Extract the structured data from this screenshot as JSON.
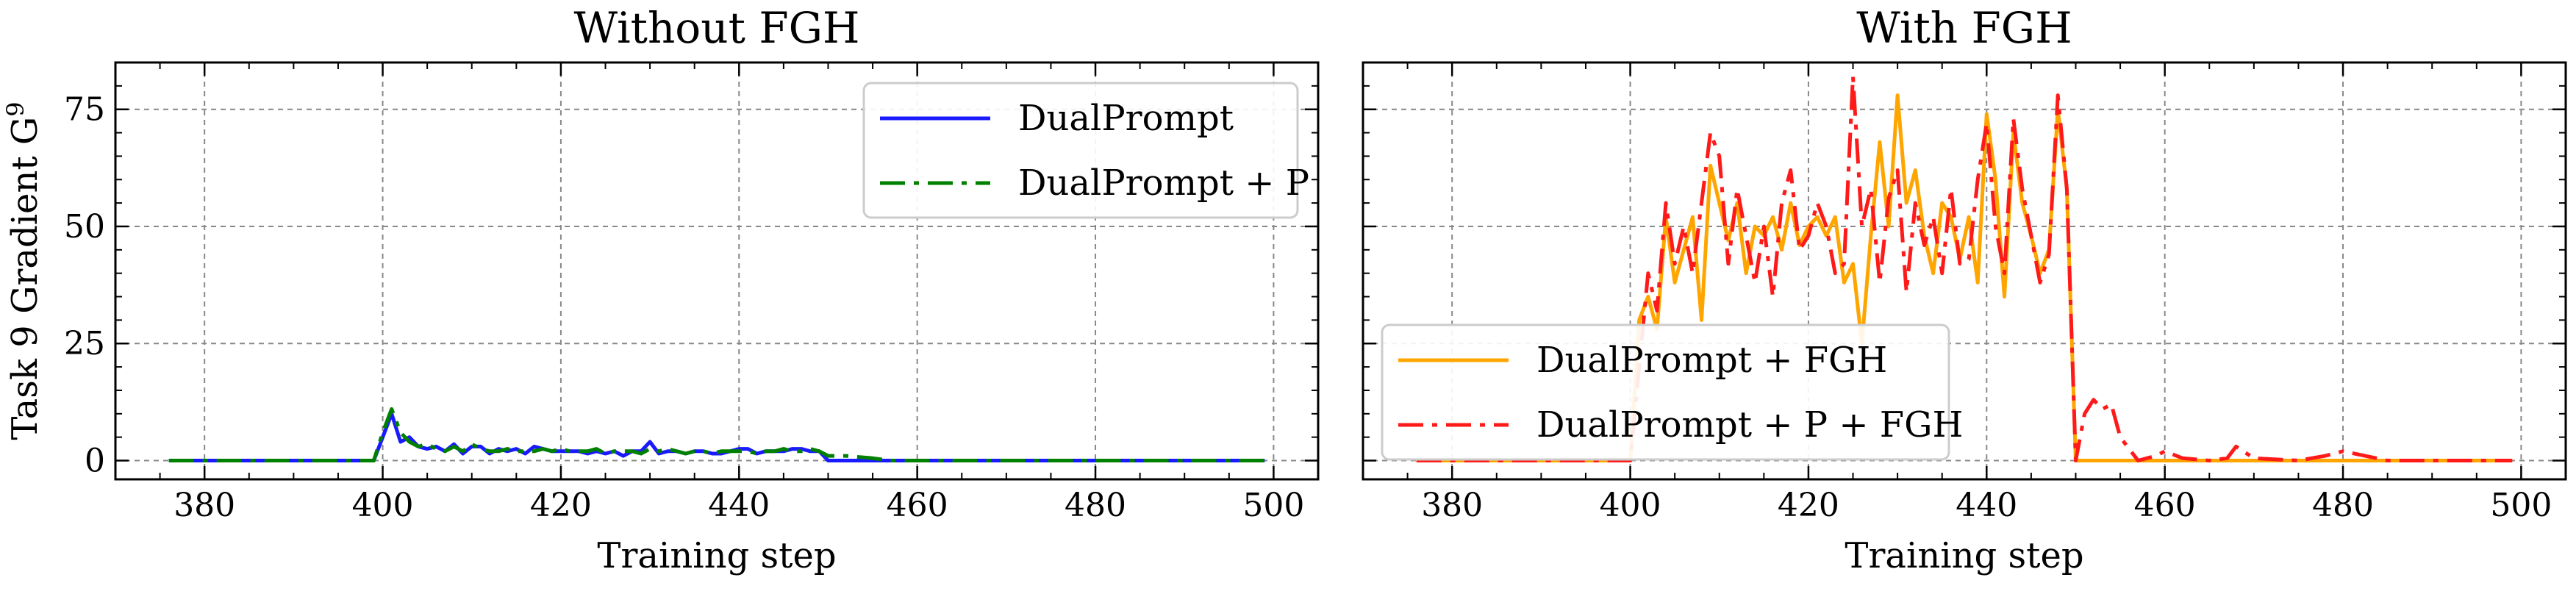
{
  "chart_data": [
    {
      "type": "line",
      "title": "Without FGH",
      "xlabel": "Training step",
      "ylabel": "Task 9 Gradient G",
      "ylabel_superscript": "9",
      "xlim": [
        370,
        505
      ],
      "ylim": [
        -4,
        85
      ],
      "xticks": [
        380,
        400,
        420,
        440,
        460,
        480,
        500
      ],
      "yticks": [
        0,
        25,
        50,
        75
      ],
      "grid": true,
      "legend": "top-right",
      "series": [
        {
          "name": "DualPrompt",
          "color": "#1a1aff",
          "dash": "solid",
          "x": [
            376,
            380,
            385,
            390,
            395,
            399,
            400,
            401,
            402,
            403,
            404,
            405,
            406,
            407,
            408,
            409,
            410,
            411,
            412,
            413,
            414,
            415,
            416,
            417,
            418,
            419,
            420,
            421,
            422,
            423,
            424,
            425,
            426,
            427,
            428,
            429,
            430,
            431,
            432,
            433,
            434,
            435,
            436,
            437,
            438,
            439,
            440,
            441,
            442,
            443,
            444,
            445,
            446,
            447,
            448,
            449,
            450,
            455,
            460,
            470,
            480,
            490,
            499
          ],
          "values": [
            0,
            0,
            0,
            0,
            0,
            0,
            5,
            10,
            4,
            5,
            3,
            2.5,
            3,
            2,
            3.5,
            1.5,
            3,
            3,
            1.5,
            2.5,
            2,
            2.5,
            1.5,
            3,
            2.5,
            2,
            2,
            2,
            2,
            1.5,
            2,
            1.5,
            2,
            1,
            2,
            2,
            4,
            1.5,
            2,
            2,
            1.5,
            2,
            2,
            1.5,
            1.5,
            2,
            2.5,
            2.5,
            1.5,
            2,
            2,
            2,
            2.5,
            2.5,
            2,
            2,
            0,
            0,
            0,
            0,
            0,
            0,
            0
          ]
        },
        {
          "name": "DualPrompt + P",
          "color": "#008000",
          "dash": "dashdot",
          "x": [
            376,
            380,
            385,
            390,
            395,
            399,
            400,
            401,
            402,
            403,
            404,
            405,
            406,
            407,
            408,
            409,
            410,
            411,
            412,
            413,
            414,
            415,
            416,
            417,
            418,
            419,
            420,
            421,
            422,
            423,
            424,
            425,
            426,
            427,
            428,
            429,
            430,
            431,
            432,
            433,
            434,
            435,
            436,
            437,
            438,
            439,
            440,
            441,
            442,
            443,
            444,
            445,
            446,
            447,
            448,
            449,
            450,
            452,
            455,
            457,
            460,
            470,
            480,
            490,
            499
          ],
          "values": [
            0,
            0,
            0,
            0,
            0,
            0,
            6,
            11,
            6,
            4,
            3,
            3.5,
            2.5,
            2,
            3,
            2,
            3.5,
            2.5,
            2,
            2,
            2.5,
            2,
            2,
            2,
            2.5,
            2,
            2.5,
            2,
            2,
            2,
            2.5,
            1.5,
            2,
            2,
            2,
            1.5,
            2.5,
            2,
            2.5,
            2,
            1.5,
            2,
            2,
            1.5,
            2,
            2,
            2,
            2,
            1.5,
            2,
            2,
            2.5,
            2,
            2,
            2.5,
            2,
            1,
            1,
            0.5,
            0,
            0,
            0,
            0,
            0,
            0
          ]
        }
      ]
    },
    {
      "type": "line",
      "title": "With FGH",
      "xlabel": "Training step",
      "ylabel": "",
      "xlim": [
        370,
        505
      ],
      "ylim": [
        -4,
        85
      ],
      "xticks": [
        380,
        400,
        420,
        440,
        460,
        480,
        500
      ],
      "yticks": [
        0,
        25,
        50,
        75
      ],
      "grid": true,
      "legend": "bottom-left",
      "series": [
        {
          "name": "DualPrompt + FGH",
          "color": "#ffa500",
          "dash": "solid",
          "x": [
            376,
            380,
            385,
            390,
            395,
            399,
            400,
            401,
            402,
            403,
            404,
            405,
            406,
            407,
            408,
            409,
            410,
            411,
            412,
            413,
            414,
            415,
            416,
            417,
            418,
            419,
            420,
            421,
            422,
            423,
            424,
            425,
            426,
            427,
            428,
            429,
            430,
            431,
            432,
            433,
            434,
            435,
            436,
            437,
            438,
            439,
            440,
            441,
            442,
            443,
            444,
            445,
            446,
            447,
            448,
            449,
            450,
            455,
            460,
            470,
            480,
            490,
            499
          ],
          "values": [
            0,
            0,
            0,
            0,
            0,
            0,
            0,
            30,
            35,
            28,
            52,
            38,
            45,
            52,
            30,
            63,
            55,
            47,
            55,
            40,
            50,
            48,
            52,
            45,
            55,
            46,
            50,
            52,
            48,
            52,
            38,
            42,
            25,
            48,
            68,
            50,
            78,
            55,
            62,
            48,
            40,
            55,
            52,
            43,
            52,
            38,
            74,
            60,
            35,
            70,
            55,
            48,
            40,
            45,
            75,
            58,
            0,
            0,
            0,
            0,
            0,
            0,
            0
          ]
        },
        {
          "name": "DualPrompt + P + FGH",
          "color": "#ff1a1a",
          "dash": "dashdot",
          "x": [
            376,
            380,
            385,
            390,
            395,
            399,
            400,
            401,
            402,
            403,
            404,
            405,
            406,
            407,
            408,
            409,
            410,
            411,
            412,
            413,
            414,
            415,
            416,
            417,
            418,
            419,
            420,
            421,
            422,
            423,
            424,
            425,
            426,
            427,
            428,
            429,
            430,
            431,
            432,
            433,
            434,
            435,
            436,
            437,
            438,
            439,
            440,
            441,
            442,
            443,
            444,
            445,
            446,
            447,
            448,
            449,
            450,
            451,
            452,
            453,
            454,
            455,
            457,
            459,
            460,
            462,
            465,
            467,
            468,
            470,
            475,
            478,
            480,
            485,
            490,
            495,
            499
          ],
          "values": [
            0,
            0,
            0,
            0,
            0,
            0,
            0,
            20,
            40,
            32,
            55,
            42,
            50,
            40,
            55,
            70,
            65,
            42,
            58,
            48,
            38,
            50,
            35,
            55,
            62,
            45,
            48,
            55,
            50,
            40,
            42,
            82,
            50,
            58,
            38,
            56,
            62,
            36,
            55,
            46,
            52,
            40,
            58,
            42,
            43,
            60,
            72,
            50,
            40,
            73,
            58,
            48,
            38,
            44,
            78,
            58,
            0,
            10,
            13,
            11,
            12,
            5,
            0,
            1,
            2,
            0.5,
            0,
            0.5,
            3,
            0.5,
            0,
            1,
            2,
            0,
            0,
            0,
            0
          ]
        }
      ]
    }
  ]
}
